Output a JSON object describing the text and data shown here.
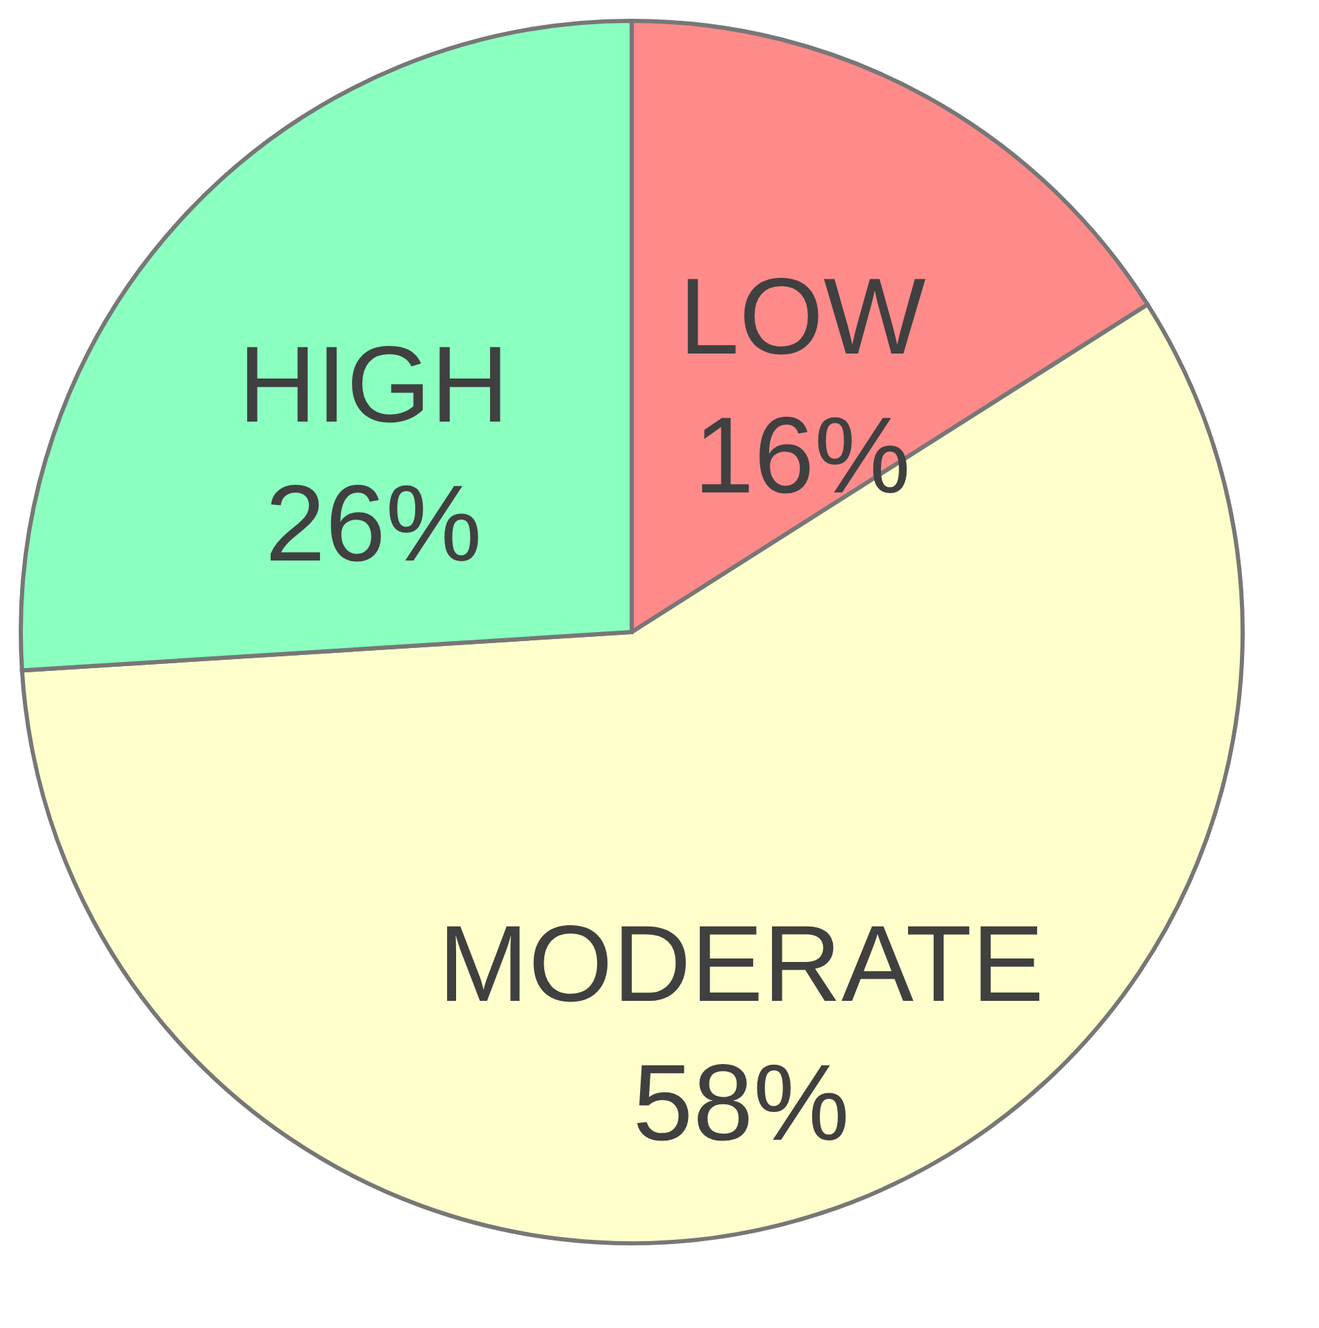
{
  "chart_data": {
    "type": "pie",
    "categories": [
      "LOW",
      "MODERATE",
      "HIGH"
    ],
    "values": [
      16,
      58,
      26
    ],
    "colors": [
      "#ff8a8a",
      "#ffffcc",
      "#8affbf"
    ],
    "value_labels": [
      "16%",
      "58%",
      "26%"
    ]
  }
}
